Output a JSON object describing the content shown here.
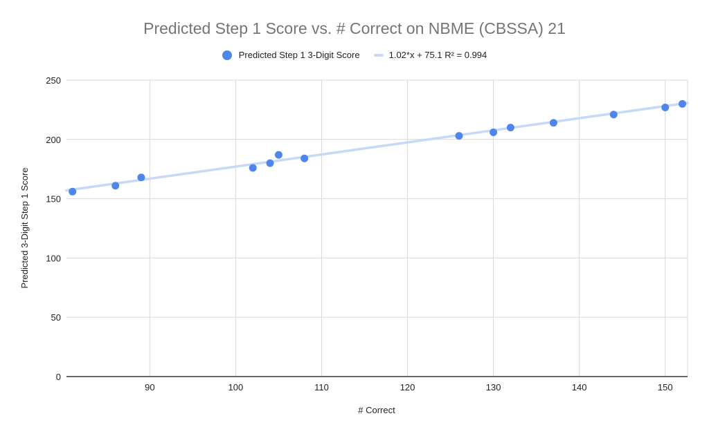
{
  "chart": {
    "title": "Predicted Step 1 Score vs. # Correct on NBME (CBSSA) 21",
    "legend": [
      {
        "label": "Predicted Step 1 3-Digit Score",
        "type": "point",
        "color": "#4f86ec"
      },
      {
        "label": "1.02*x + 75.1 R² = 0.994",
        "type": "trendline",
        "color": "#c6d9f7"
      }
    ],
    "xlabel": "# Correct",
    "ylabel": "Predicted 3-Digit Step 1 Score"
  },
  "chart_data": {
    "type": "scatter",
    "title": "Predicted Step 1 Score vs. # Correct on NBME (CBSSA) 21",
    "xlabel": "# Correct",
    "ylabel": "Predicted 3-Digit Step 1 Score",
    "xlim": [
      80.3,
      152.6
    ],
    "ylim": [
      0,
      250
    ],
    "x_ticks": [
      90,
      100,
      110,
      120,
      130,
      140,
      150
    ],
    "y_ticks": [
      0,
      50,
      100,
      150,
      200,
      250
    ],
    "grid": true,
    "legend_position": "top",
    "series": [
      {
        "name": "Predicted Step 1 3-Digit Score",
        "color": "#4f86ec",
        "points": [
          {
            "x": 81,
            "y": 156
          },
          {
            "x": 86,
            "y": 161
          },
          {
            "x": 89,
            "y": 168
          },
          {
            "x": 102,
            "y": 176
          },
          {
            "x": 104,
            "y": 180
          },
          {
            "x": 105,
            "y": 187
          },
          {
            "x": 108,
            "y": 184
          },
          {
            "x": 126,
            "y": 203
          },
          {
            "x": 130,
            "y": 206
          },
          {
            "x": 132,
            "y": 210
          },
          {
            "x": 137,
            "y": 214
          },
          {
            "x": 144,
            "y": 221
          },
          {
            "x": 150,
            "y": 227
          },
          {
            "x": 152,
            "y": 230
          }
        ]
      }
    ],
    "trendline": {
      "label": "1.02*x + 75.1 R² = 0.994",
      "slope": 1.02,
      "intercept": 75.1,
      "r2": 0.994,
      "color": "#c6d9f7"
    }
  }
}
